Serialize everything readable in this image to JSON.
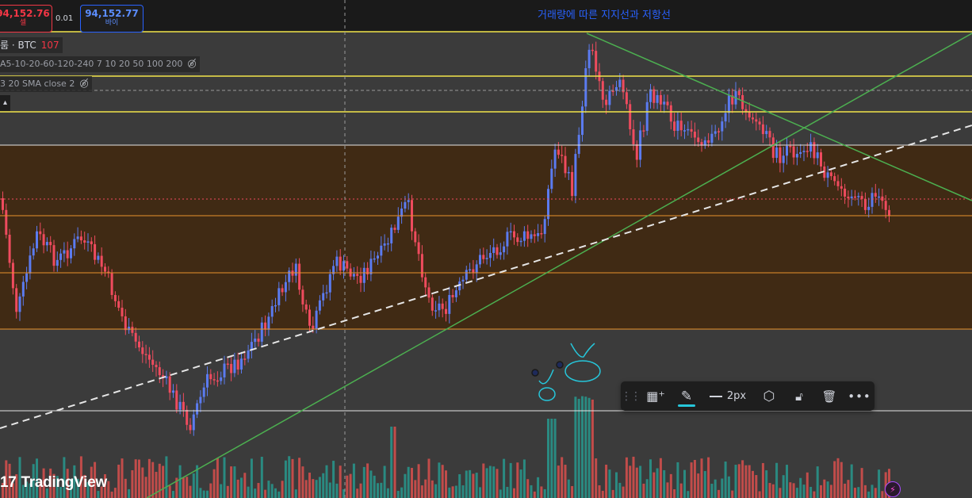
{
  "trade": {
    "sell_price": "94,152.76",
    "sell_label": "셀",
    "spread": "0.01",
    "buy_price": "94,152.77",
    "buy_label": "바이"
  },
  "legend": {
    "symbol_prefix": "룸 · BTC",
    "symbol_count": "107",
    "ema_text": "A5-10-20-60-120-240 7 10 20 50 100 200",
    "sma_text": "3 20 SMA close 2"
  },
  "chart": {
    "title": "거래량에 따른 지지선과 저항선",
    "colors": {
      "up": "#5b7bf0",
      "down": "#ef4b5e",
      "vol_up": "#26a69a",
      "vol_down": "#ef5350",
      "zone": "#402a14",
      "yellow": "#f2e44a",
      "orange": "#e8912c",
      "green": "#4caf50",
      "white": "#e6e6e6",
      "annotation": "#26c6da"
    }
  },
  "toolbar": {
    "drag_icon": "drag-handle-icon",
    "templates_icon": "templates-icon",
    "brush_icon": "brush-icon",
    "width_label": "2px",
    "settings_icon": "settings-icon",
    "lock_icon": "lock-icon",
    "trash_icon": "trash-icon",
    "more_icon": "more-icon"
  },
  "watermark": {
    "text": "TradingView"
  }
}
